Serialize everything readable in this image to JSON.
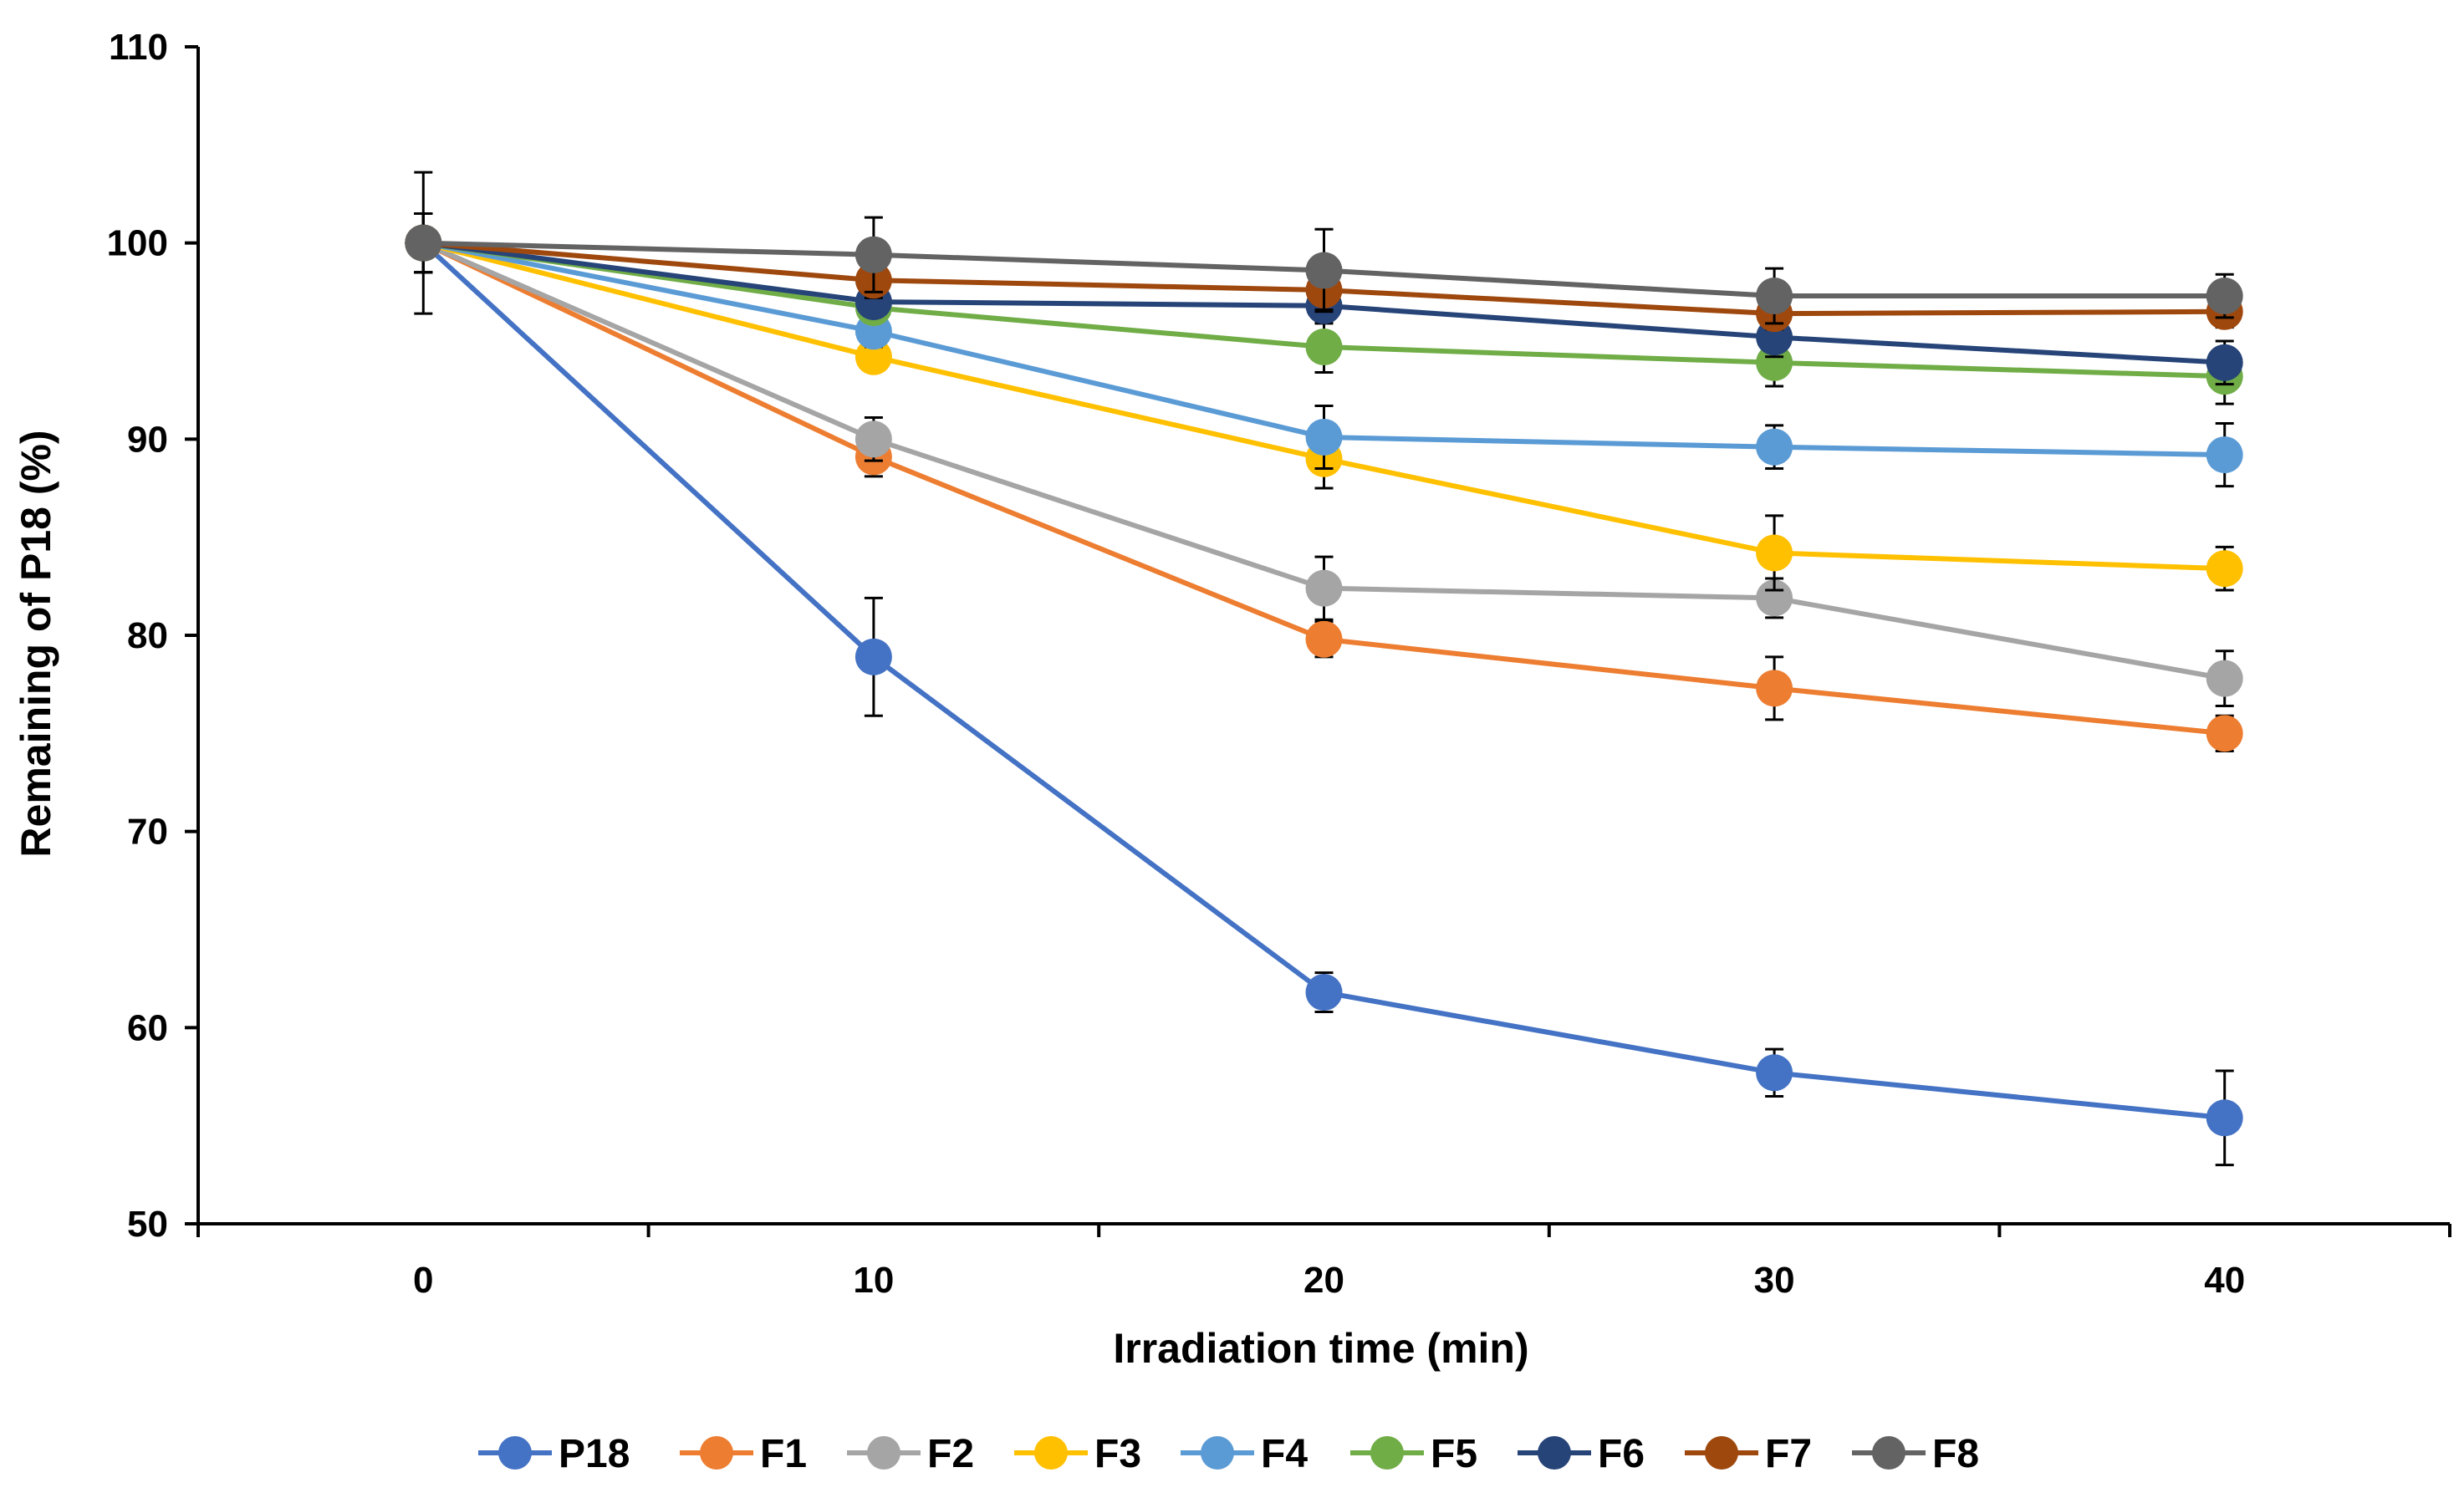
{
  "chart_data": {
    "type": "line",
    "title": "",
    "xlabel": "Irradiation time (min)",
    "ylabel": "Remaining of P18 (%)",
    "xlim": [
      -5,
      45
    ],
    "ylim": [
      50,
      110
    ],
    "x": [
      0,
      10,
      20,
      30,
      40
    ],
    "x_tick_labels": [
      "0",
      "10",
      "20",
      "30",
      "40"
    ],
    "y_ticks": [
      50,
      60,
      70,
      80,
      90,
      100,
      110
    ],
    "y_tick_labels": [
      "50",
      "60",
      "70",
      "80",
      "90",
      "100",
      "110"
    ],
    "grid": false,
    "legend_position": "bottom",
    "series": [
      {
        "name": "P18",
        "color": "#4472C4",
        "values": [
          100,
          78.9,
          61.8,
          57.7,
          55.4
        ],
        "errors": [
          3.6,
          3.0,
          1.0,
          1.2,
          2.4
        ]
      },
      {
        "name": "F1",
        "color": "#ED7D31",
        "values": [
          100,
          89.1,
          79.8,
          77.3,
          75.0
        ],
        "errors": [
          1.5,
          1.0,
          0.9,
          1.6,
          0.9
        ]
      },
      {
        "name": "F2",
        "color": "#A5A5A5",
        "values": [
          100,
          90.0,
          82.4,
          81.9,
          77.8
        ],
        "errors": [
          1.5,
          1.1,
          1.6,
          1.0,
          1.4
        ]
      },
      {
        "name": "F3",
        "color": "#FFC000",
        "values": [
          100,
          94.2,
          89.0,
          84.2,
          83.4
        ],
        "errors": [
          1.5,
          0.7,
          1.5,
          1.9,
          1.1
        ]
      },
      {
        "name": "F4",
        "color": "#5B9BD5",
        "values": [
          100,
          95.5,
          90.1,
          89.6,
          89.2
        ],
        "errors": [
          1.5,
          0.8,
          1.6,
          1.1,
          1.6
        ]
      },
      {
        "name": "F5",
        "color": "#70AD47",
        "values": [
          100,
          96.7,
          94.7,
          93.9,
          93.2
        ],
        "errors": [
          1.5,
          0.7,
          1.3,
          1.2,
          1.4
        ]
      },
      {
        "name": "F6",
        "color": "#264478",
        "values": [
          100,
          97.0,
          96.8,
          95.2,
          93.9
        ],
        "errors": [
          1.5,
          0.7,
          0.9,
          1.0,
          1.1
        ]
      },
      {
        "name": "F7",
        "color": "#9E480E",
        "values": [
          100,
          98.1,
          97.6,
          96.4,
          96.5
        ],
        "errors": [
          1.5,
          0.9,
          1.0,
          0.8,
          0.8
        ]
      },
      {
        "name": "F8",
        "color": "#636363",
        "values": [
          100,
          99.4,
          98.6,
          97.3,
          97.3
        ],
        "errors": [
          1.5,
          1.9,
          2.1,
          1.4,
          1.1
        ]
      }
    ]
  }
}
